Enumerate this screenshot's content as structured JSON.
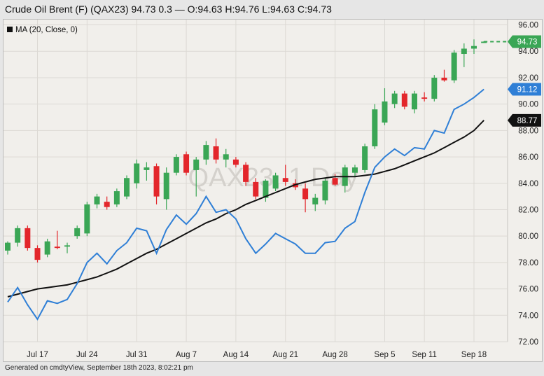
{
  "header": {
    "title": "Crude Oil Brent (F) (QAX23) 94.73 0.3 — O:94.63 H:94.76 L:94.63 C:94.73"
  },
  "footer": {
    "text": "Generated on cmdtyView, September 18th 2023, 8:02:21 pm"
  },
  "colors": {
    "up": "#3aa655",
    "down": "#e3262b",
    "ma_line": "#111111",
    "compare_line": "#2f7fd6",
    "last_badge": "#3aa655",
    "compare_badge": "#2f7fd6",
    "ma_badge": "#111111"
  },
  "chart_data": {
    "type": "candlestick",
    "watermark": "QAX23, 1 Day",
    "legend": {
      "label": "MA (20, Close, 0)",
      "placement": "top-left"
    },
    "ylim": [
      72,
      96.4
    ],
    "y_ticks": [
      "72.00",
      "74.00",
      "76.00",
      "78.00",
      "80.00",
      "82.00",
      "84.00",
      "86.00",
      "88.00",
      "90.00",
      "92.00",
      "94.00",
      "96.00"
    ],
    "x_ticks": [
      {
        "label": "Jul 17",
        "index": 3
      },
      {
        "label": "Jul 24",
        "index": 8
      },
      {
        "label": "Jul 31",
        "index": 13
      },
      {
        "label": "Aug 7",
        "index": 18
      },
      {
        "label": "Aug 14",
        "index": 23
      },
      {
        "label": "Aug 21",
        "index": 28
      },
      {
        "label": "Aug 28",
        "index": 33
      },
      {
        "label": "Sep 5",
        "index": 38
      },
      {
        "label": "Sep 11",
        "index": 42
      },
      {
        "label": "Sep 18",
        "index": 47
      }
    ],
    "candles": [
      {
        "o": 78.9,
        "h": 79.6,
        "l": 78.6,
        "c": 79.5
      },
      {
        "o": 79.5,
        "h": 80.8,
        "l": 79.2,
        "c": 80.6
      },
      {
        "o": 80.6,
        "h": 80.8,
        "l": 78.9,
        "c": 79.1
      },
      {
        "o": 79.1,
        "h": 79.3,
        "l": 78.0,
        "c": 78.2
      },
      {
        "o": 78.6,
        "h": 79.8,
        "l": 78.4,
        "c": 79.6
      },
      {
        "o": 79.2,
        "h": 80.4,
        "l": 79.0,
        "c": 79.1
      },
      {
        "o": 79.2,
        "h": 79.5,
        "l": 78.7,
        "c": 79.3
      },
      {
        "o": 80.0,
        "h": 80.8,
        "l": 79.8,
        "c": 80.6
      },
      {
        "o": 80.2,
        "h": 82.6,
        "l": 80.0,
        "c": 82.4
      },
      {
        "o": 82.4,
        "h": 83.2,
        "l": 82.1,
        "c": 83.0
      },
      {
        "o": 82.6,
        "h": 83.0,
        "l": 82.0,
        "c": 82.2
      },
      {
        "o": 82.4,
        "h": 83.6,
        "l": 82.2,
        "c": 83.4
      },
      {
        "o": 83.0,
        "h": 84.6,
        "l": 82.8,
        "c": 84.4
      },
      {
        "o": 84.0,
        "h": 85.8,
        "l": 83.6,
        "c": 85.5
      },
      {
        "o": 85.0,
        "h": 85.6,
        "l": 84.2,
        "c": 85.2
      },
      {
        "o": 85.3,
        "h": 85.5,
        "l": 82.4,
        "c": 83.0
      },
      {
        "o": 82.8,
        "h": 85.2,
        "l": 82.0,
        "c": 84.8
      },
      {
        "o": 84.8,
        "h": 86.2,
        "l": 84.6,
        "c": 86.0
      },
      {
        "o": 86.2,
        "h": 86.4,
        "l": 84.6,
        "c": 84.8
      },
      {
        "o": 85.0,
        "h": 86.0,
        "l": 83.0,
        "c": 85.8
      },
      {
        "o": 85.8,
        "h": 87.2,
        "l": 85.4,
        "c": 86.9
      },
      {
        "o": 86.8,
        "h": 87.4,
        "l": 85.5,
        "c": 85.8
      },
      {
        "o": 85.8,
        "h": 86.6,
        "l": 85.2,
        "c": 86.2
      },
      {
        "o": 85.8,
        "h": 86.0,
        "l": 85.2,
        "c": 85.4
      },
      {
        "o": 85.4,
        "h": 85.6,
        "l": 83.8,
        "c": 84.1
      },
      {
        "o": 84.1,
        "h": 84.4,
        "l": 82.8,
        "c": 83.0
      },
      {
        "o": 82.9,
        "h": 84.3,
        "l": 82.6,
        "c": 84.2
      },
      {
        "o": 83.6,
        "h": 84.8,
        "l": 83.4,
        "c": 84.6
      },
      {
        "o": 84.4,
        "h": 85.4,
        "l": 83.8,
        "c": 84.1
      },
      {
        "o": 84.0,
        "h": 84.3,
        "l": 83.5,
        "c": 83.7
      },
      {
        "o": 83.6,
        "h": 84.0,
        "l": 81.8,
        "c": 82.8
      },
      {
        "o": 82.4,
        "h": 83.2,
        "l": 81.9,
        "c": 82.9
      },
      {
        "o": 82.7,
        "h": 84.4,
        "l": 82.4,
        "c": 84.2
      },
      {
        "o": 84.4,
        "h": 84.7,
        "l": 83.8,
        "c": 83.9
      },
      {
        "o": 83.8,
        "h": 85.4,
        "l": 83.3,
        "c": 85.2
      },
      {
        "o": 84.8,
        "h": 85.4,
        "l": 84.5,
        "c": 85.2
      },
      {
        "o": 85.0,
        "h": 87.0,
        "l": 84.8,
        "c": 86.8
      },
      {
        "o": 86.8,
        "h": 90.0,
        "l": 86.6,
        "c": 89.6
      },
      {
        "o": 88.6,
        "h": 91.2,
        "l": 88.4,
        "c": 90.2
      },
      {
        "o": 90.0,
        "h": 91.0,
        "l": 89.7,
        "c": 90.8
      },
      {
        "o": 90.8,
        "h": 91.0,
        "l": 89.6,
        "c": 89.8
      },
      {
        "o": 89.6,
        "h": 91.0,
        "l": 89.3,
        "c": 90.8
      },
      {
        "o": 90.5,
        "h": 90.9,
        "l": 90.2,
        "c": 90.4
      },
      {
        "o": 90.4,
        "h": 92.2,
        "l": 90.2,
        "c": 92.0
      },
      {
        "o": 92.0,
        "h": 92.6,
        "l": 91.7,
        "c": 91.8
      },
      {
        "o": 91.8,
        "h": 94.1,
        "l": 91.6,
        "c": 93.9
      },
      {
        "o": 93.8,
        "h": 94.6,
        "l": 92.8,
        "c": 94.2
      },
      {
        "o": 94.2,
        "h": 94.9,
        "l": 93.8,
        "c": 94.4
      },
      {
        "o": 94.63,
        "h": 94.76,
        "l": 94.63,
        "c": 94.73
      }
    ],
    "ma_series": {
      "name": "MA (20, Close, 0)",
      "values": [
        75.4,
        75.6,
        75.8,
        76.0,
        76.1,
        76.2,
        76.3,
        76.5,
        76.7,
        76.9,
        77.2,
        77.5,
        77.9,
        78.3,
        78.7,
        79.0,
        79.4,
        79.8,
        80.2,
        80.6,
        81.0,
        81.3,
        81.7,
        82.0,
        82.4,
        82.7,
        83.0,
        83.3,
        83.6,
        83.9,
        84.1,
        84.3,
        84.4,
        84.5,
        84.5,
        84.5,
        84.6,
        84.7,
        84.9,
        85.1,
        85.4,
        85.7,
        86.0,
        86.3,
        86.7,
        87.1,
        87.5,
        88.0,
        88.77
      ]
    },
    "compare_series": {
      "values": [
        75.0,
        76.1,
        74.8,
        73.7,
        75.1,
        74.9,
        75.2,
        76.4,
        78.0,
        78.7,
        77.9,
        78.9,
        79.5,
        80.6,
        80.4,
        78.7,
        80.5,
        81.6,
        80.9,
        81.7,
        83.0,
        81.8,
        82.0,
        81.3,
        79.8,
        78.7,
        79.4,
        80.2,
        79.8,
        79.4,
        78.7,
        78.7,
        79.5,
        79.6,
        80.6,
        81.1,
        83.3,
        85.2,
        86.0,
        86.6,
        86.1,
        86.7,
        86.6,
        88.0,
        87.8,
        89.6,
        90.0,
        90.5,
        91.12
      ]
    },
    "last_values": {
      "last": "94.73",
      "compare": "91.12",
      "ma": "88.77"
    },
    "grid": true
  }
}
